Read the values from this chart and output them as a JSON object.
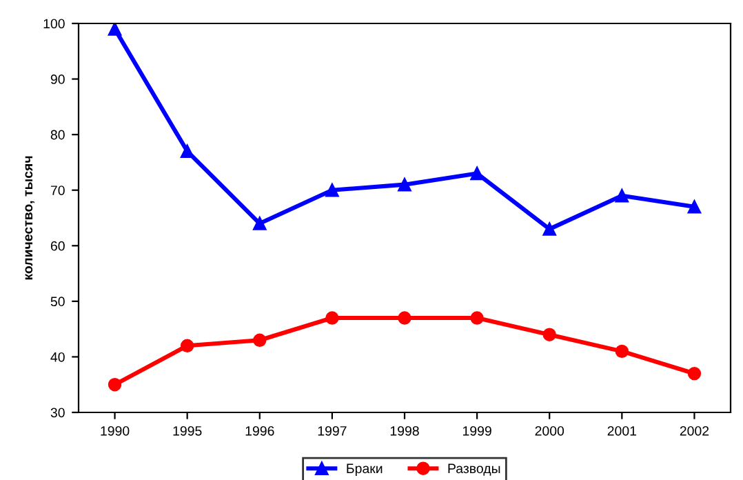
{
  "chart_data": {
    "type": "line",
    "ylabel": "количество, тысяч",
    "categories": [
      "1990",
      "1995",
      "1996",
      "1997",
      "1998",
      "1999",
      "2000",
      "2001",
      "2002"
    ],
    "series": [
      {
        "name": "Браки",
        "color": "#0000ff",
        "marker": "triangle",
        "values": [
          99,
          77,
          64,
          70,
          71,
          73,
          63,
          69,
          67
        ]
      },
      {
        "name": "Разводы",
        "color": "#ff0000",
        "marker": "circle",
        "values": [
          35,
          42,
          43,
          47,
          47,
          47,
          44,
          41,
          37
        ]
      }
    ],
    "ylim": [
      30,
      100
    ],
    "yticks": [
      30,
      40,
      50,
      60,
      70,
      80,
      90,
      100
    ],
    "grid": false,
    "legend": "bottom",
    "line_style": "solid"
  }
}
